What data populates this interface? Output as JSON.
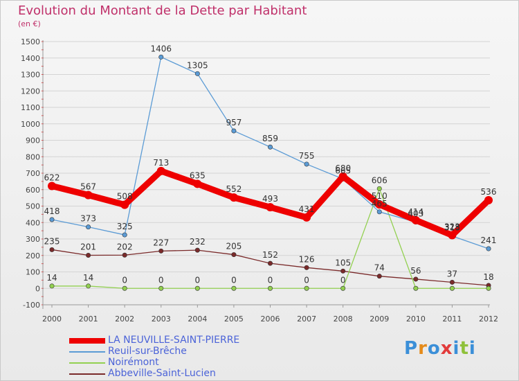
{
  "title": "Evolution du Montant de la Dette par Habitant",
  "subtitle": "(en €)",
  "colors": {
    "title": "#c0306a",
    "series": [
      "#ee0000",
      "#5b9bd5",
      "#92d050",
      "#7a2a2a"
    ]
  },
  "logo": {
    "text": "Proxiti",
    "colors": [
      "#3b8fd8",
      "#e58b1a",
      "#3b8fd8",
      "#e23b3b",
      "#3b8fd8",
      "#8fc13a",
      "#3b8fd8"
    ]
  },
  "chart_data": {
    "type": "line",
    "title": "Evolution du Montant de la Dette par Habitant",
    "subtitle": "(en €)",
    "x": [
      "2000",
      "2001",
      "2002",
      "2003",
      "2004",
      "2005",
      "2006",
      "2007",
      "2008",
      "2009",
      "2010",
      "2011",
      "2012"
    ],
    "ylim": [
      -100,
      1500
    ],
    "yticks": [
      -100,
      0,
      100,
      200,
      300,
      400,
      500,
      600,
      700,
      800,
      900,
      1000,
      1100,
      1200,
      1300,
      1400,
      1500
    ],
    "grid": true,
    "legend_position": "bottom-left",
    "series": [
      {
        "name": "LA NEUVILLE-SAINT-PIERRE",
        "values": [
          622,
          567,
          508,
          713,
          635,
          552,
          493,
          431,
          680,
          510,
          414,
          323,
          536
        ],
        "labels": [
          "622",
          "567",
          "508",
          "713",
          "635",
          "552",
          "493",
          "431",
          "680",
          "510",
          "414",
          "323",
          "536"
        ]
      },
      {
        "name": "Reuil-sur-Brêche",
        "values": [
          418,
          373,
          325,
          1406,
          1305,
          957,
          859,
          755,
          665,
          465,
          403,
          318,
          241
        ],
        "labels": [
          "418",
          "373",
          "325",
          "1406",
          "1305",
          "957",
          "859",
          "755",
          "665",
          "465",
          "403",
          "318",
          "241"
        ]
      },
      {
        "name": "Noirémont",
        "values": [
          14,
          14,
          0,
          0,
          0,
          0,
          0,
          0,
          0,
          606,
          0,
          0,
          0
        ],
        "labels": [
          "14",
          "14",
          "0",
          "0",
          "0",
          "0",
          "0",
          "0",
          "0",
          "606",
          "",
          "",
          ""
        ]
      },
      {
        "name": "Abbeville-Saint-Lucien",
        "values": [
          235,
          201,
          202,
          227,
          232,
          205,
          152,
          126,
          105,
          74,
          56,
          37,
          18
        ],
        "labels": [
          "235",
          "201",
          "202",
          "227",
          "232",
          "205",
          "152",
          "126",
          "105",
          "74",
          "56",
          "37",
          "18"
        ]
      }
    ]
  }
}
